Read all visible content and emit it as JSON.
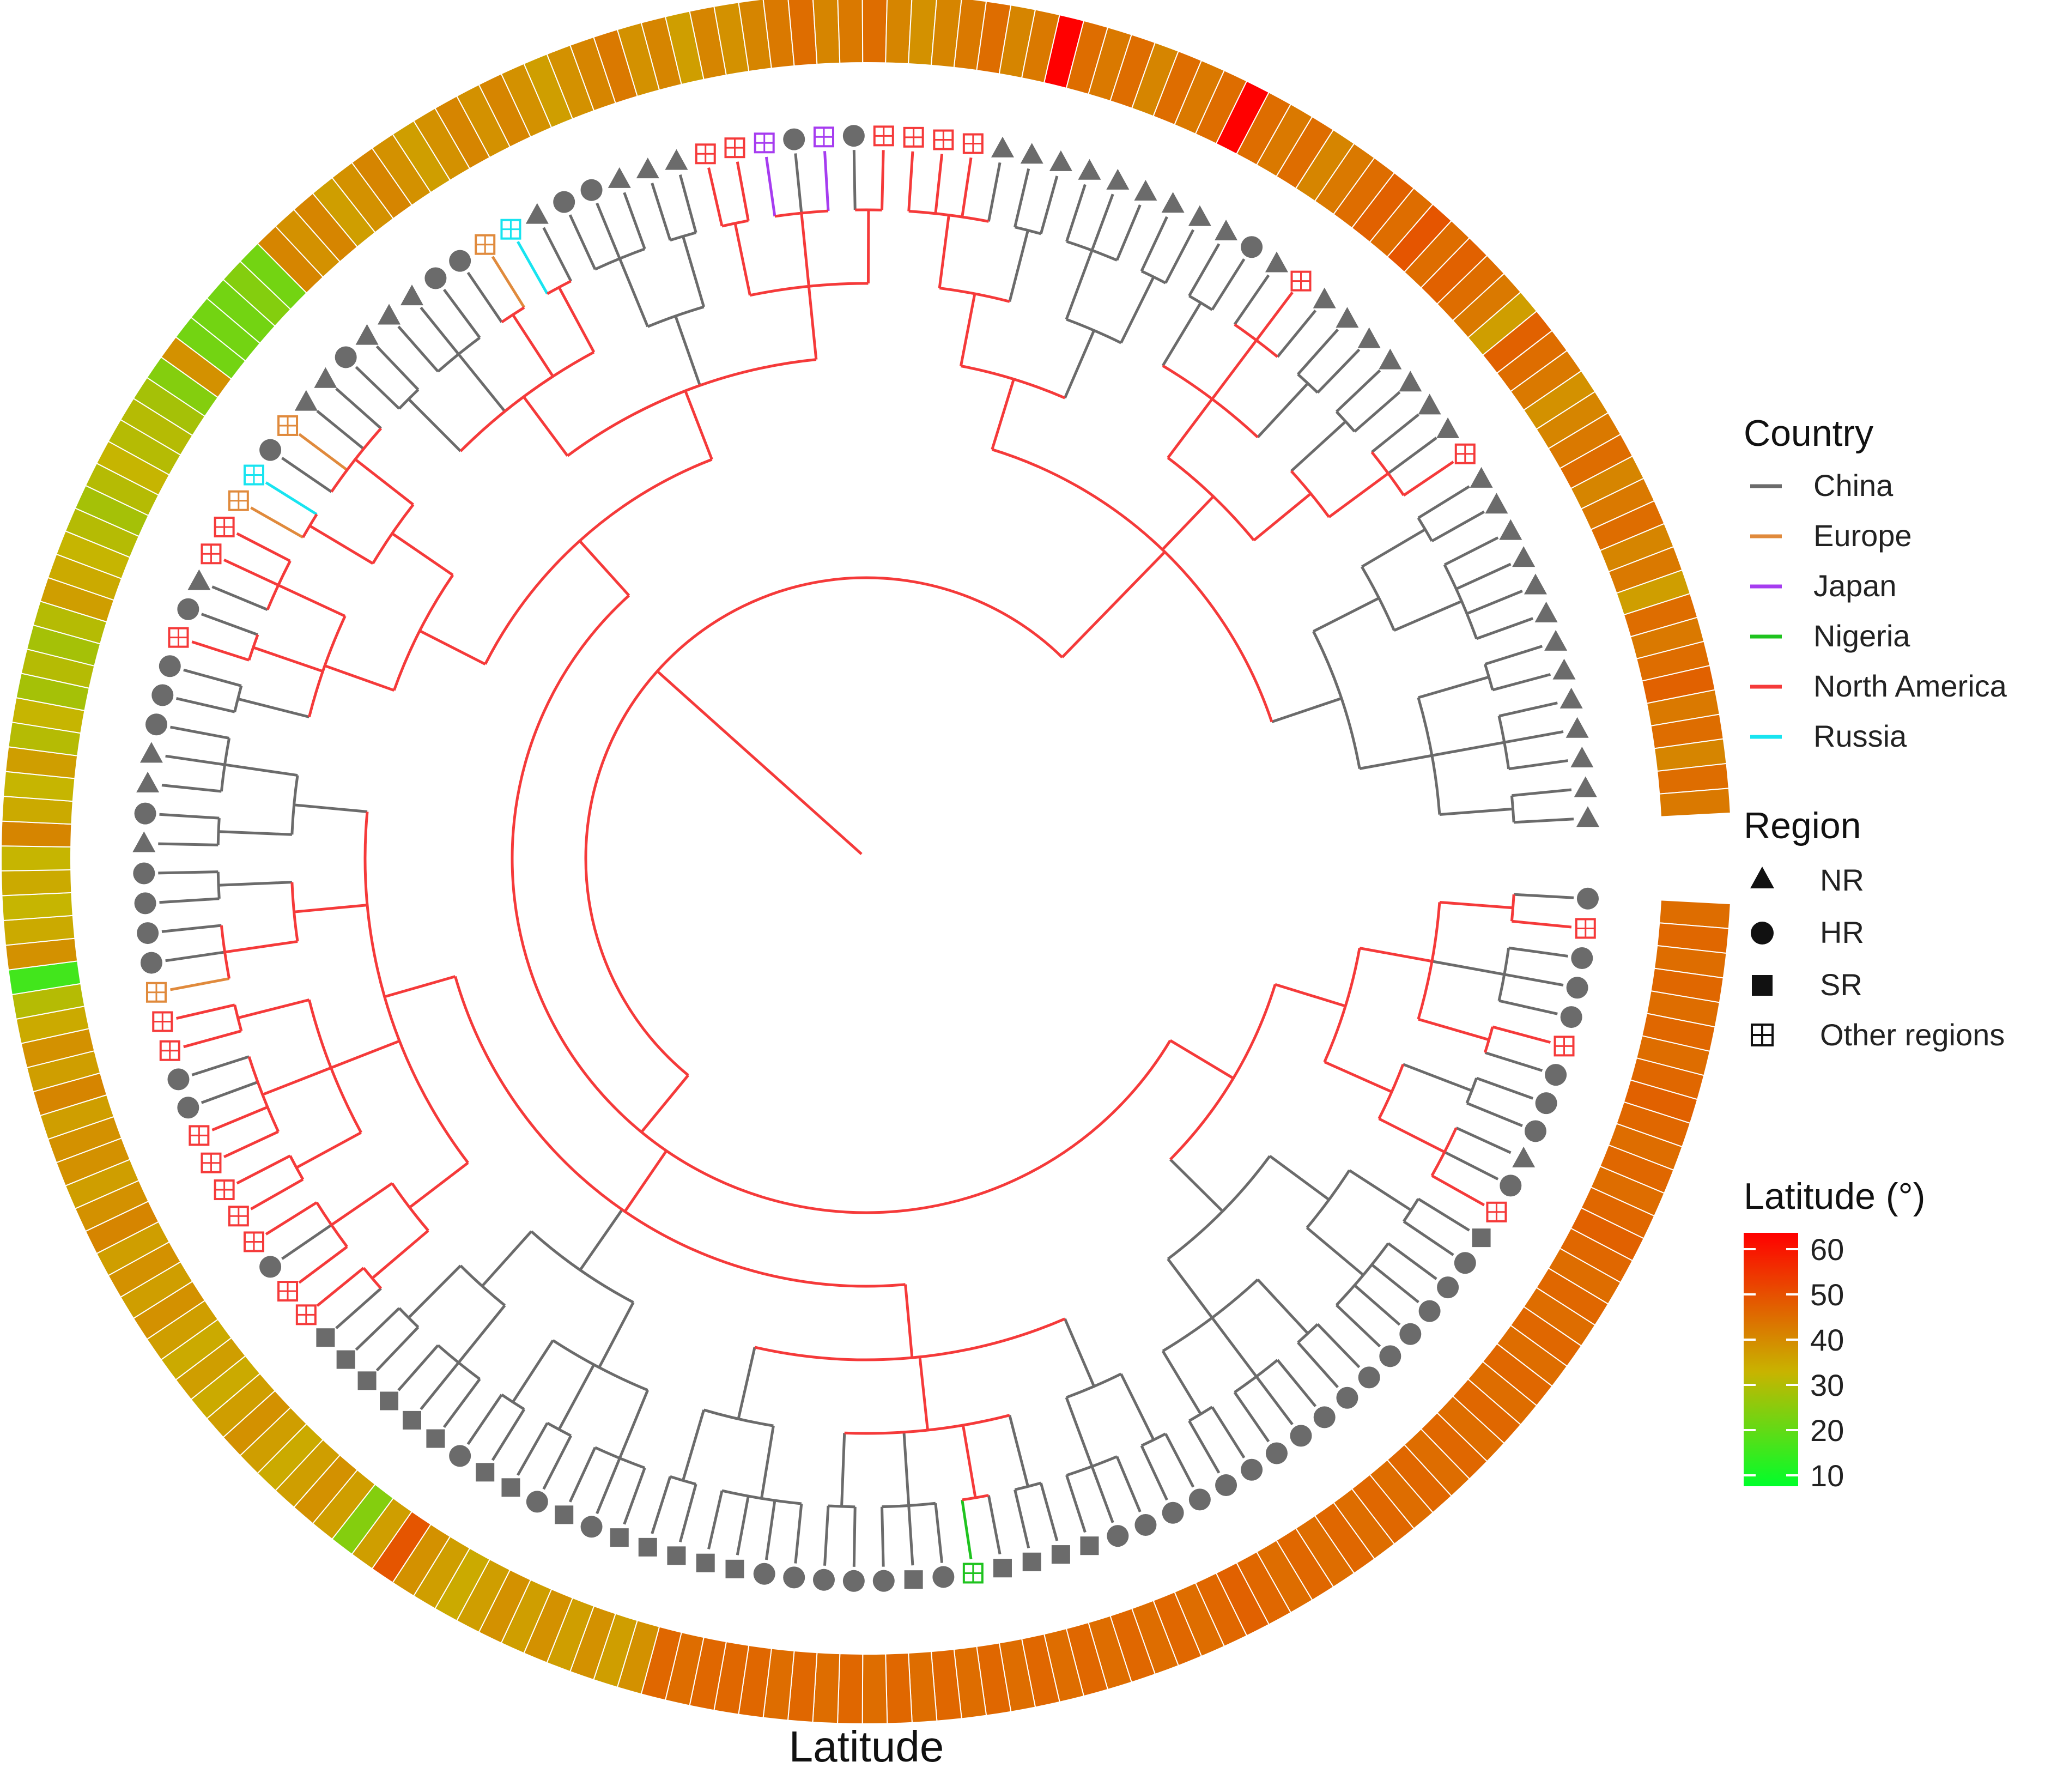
{
  "title": "Latitude",
  "legend": {
    "country": {
      "title": "Country",
      "items": [
        {
          "label": "China",
          "color": "#6b6b6b"
        },
        {
          "label": "Europe",
          "color": "#e08a3c"
        },
        {
          "label": "Japan",
          "color": "#a63cf0"
        },
        {
          "label": "Nigeria",
          "color": "#1fc31f"
        },
        {
          "label": "North America",
          "color": "#f53a3a"
        },
        {
          "label": "Russia",
          "color": "#18e4f0"
        }
      ]
    },
    "region": {
      "title": "Region",
      "items": [
        {
          "label": "NR",
          "shape": "triangle-icon"
        },
        {
          "label": "HR",
          "shape": "circle-icon"
        },
        {
          "label": "SR",
          "shape": "square-icon"
        },
        {
          "label": "Other regions",
          "shape": "boxed-plus-icon"
        }
      ]
    },
    "latitude": {
      "title": "Latitude (°)",
      "ticks": [
        "60",
        "50",
        "40",
        "30",
        "20",
        "10"
      ],
      "min": 8,
      "max": 62,
      "low_color": "#00ff2a",
      "mid_color": "#c8b400",
      "high_color": "#ff0000"
    }
  },
  "ring_latitudes": [
    44,
    45,
    44,
    45,
    44,
    45,
    44,
    45,
    46,
    45,
    44,
    45,
    44,
    45,
    46,
    45,
    44,
    45,
    44,
    45,
    44,
    45,
    44,
    45,
    44,
    45,
    44,
    45,
    44,
    45,
    44,
    45,
    44,
    45,
    44,
    45,
    46,
    45,
    44,
    45,
    44,
    45,
    44,
    45,
    44,
    45,
    44,
    45,
    44,
    45,
    44,
    45,
    44,
    45,
    44,
    45,
    44,
    45,
    45,
    45,
    44,
    45,
    38,
    36,
    38,
    36,
    38,
    36,
    38,
    36,
    34,
    36,
    38,
    48,
    36,
    24,
    36,
    38,
    36,
    34,
    36,
    38,
    36,
    34,
    36,
    34,
    36,
    38,
    36,
    38,
    36,
    40,
    38,
    36,
    38,
    38,
    36,
    40,
    36,
    38,
    34,
    30,
    16,
    38,
    34,
    32,
    34,
    32,
    40,
    34,
    32,
    36,
    30,
    32,
    28,
    30,
    28,
    30,
    36,
    34,
    32,
    30,
    28,
    30,
    32,
    30,
    30,
    28,
    24,
    38,
    22,
    22,
    22,
    24,
    22,
    40,
    38,
    40,
    36,
    38,
    40,
    38,
    36,
    38,
    40,
    38,
    40,
    38,
    36,
    38,
    40,
    42,
    38,
    40,
    36,
    40,
    38,
    40,
    42,
    44,
    40,
    42,
    44,
    40,
    38,
    40,
    42,
    44,
    40,
    42,
    62,
    44,
    42,
    44,
    40,
    44,
    42,
    44,
    62,
    44,
    42,
    44,
    40,
    42,
    44,
    46,
    44,
    48,
    44,
    46,
    44,
    42,
    36,
    46,
    44,
    42,
    38,
    40,
    42,
    44,
    40,
    42,
    44,
    40,
    42,
    36,
    44,
    42,
    44,
    46,
    42,
    44,
    40,
    44,
    42
  ],
  "tips": [
    {
      "s": "c",
      "c": "#6b6b6b"
    },
    {
      "s": "o",
      "c": "#f53a3a"
    },
    {
      "s": "c",
      "c": "#6b6b6b"
    },
    {
      "s": "c",
      "c": "#6b6b6b"
    },
    {
      "s": "c",
      "c": "#6b6b6b"
    },
    {
      "s": "o",
      "c": "#f53a3a"
    },
    {
      "s": "c",
      "c": "#6b6b6b"
    },
    {
      "s": "c",
      "c": "#6b6b6b"
    },
    {
      "s": "c",
      "c": "#6b6b6b"
    },
    {
      "s": "t",
      "c": "#6b6b6b"
    },
    {
      "s": "c",
      "c": "#6b6b6b"
    },
    {
      "s": "o",
      "c": "#f53a3a"
    },
    {
      "s": "s",
      "c": "#6b6b6b"
    },
    {
      "s": "c",
      "c": "#6b6b6b"
    },
    {
      "s": "c",
      "c": "#6b6b6b"
    },
    {
      "s": "c",
      "c": "#6b6b6b"
    },
    {
      "s": "c",
      "c": "#6b6b6b"
    },
    {
      "s": "c",
      "c": "#6b6b6b"
    },
    {
      "s": "c",
      "c": "#6b6b6b"
    },
    {
      "s": "c",
      "c": "#6b6b6b"
    },
    {
      "s": "c",
      "c": "#6b6b6b"
    },
    {
      "s": "c",
      "c": "#6b6b6b"
    },
    {
      "s": "c",
      "c": "#6b6b6b"
    },
    {
      "s": "c",
      "c": "#6b6b6b"
    },
    {
      "s": "c",
      "c": "#6b6b6b"
    },
    {
      "s": "c",
      "c": "#6b6b6b"
    },
    {
      "s": "c",
      "c": "#6b6b6b"
    },
    {
      "s": "c",
      "c": "#6b6b6b"
    },
    {
      "s": "c",
      "c": "#6b6b6b"
    },
    {
      "s": "s",
      "c": "#6b6b6b"
    },
    {
      "s": "s",
      "c": "#6b6b6b"
    },
    {
      "s": "s",
      "c": "#6b6b6b"
    },
    {
      "s": "s",
      "c": "#6b6b6b"
    },
    {
      "s": "o",
      "c": "#1fc31f"
    },
    {
      "s": "c",
      "c": "#6b6b6b"
    },
    {
      "s": "s",
      "c": "#6b6b6b"
    },
    {
      "s": "c",
      "c": "#6b6b6b"
    },
    {
      "s": "c",
      "c": "#6b6b6b"
    },
    {
      "s": "c",
      "c": "#6b6b6b"
    },
    {
      "s": "c",
      "c": "#6b6b6b"
    },
    {
      "s": "c",
      "c": "#6b6b6b"
    },
    {
      "s": "s",
      "c": "#6b6b6b"
    },
    {
      "s": "s",
      "c": "#6b6b6b"
    },
    {
      "s": "s",
      "c": "#6b6b6b"
    },
    {
      "s": "s",
      "c": "#6b6b6b"
    },
    {
      "s": "s",
      "c": "#6b6b6b"
    },
    {
      "s": "c",
      "c": "#6b6b6b"
    },
    {
      "s": "s",
      "c": "#6b6b6b"
    },
    {
      "s": "c",
      "c": "#6b6b6b"
    },
    {
      "s": "s",
      "c": "#6b6b6b"
    },
    {
      "s": "s",
      "c": "#6b6b6b"
    },
    {
      "s": "c",
      "c": "#6b6b6b"
    },
    {
      "s": "s",
      "c": "#6b6b6b"
    },
    {
      "s": "s",
      "c": "#6b6b6b"
    },
    {
      "s": "s",
      "c": "#6b6b6b"
    },
    {
      "s": "s",
      "c": "#6b6b6b"
    },
    {
      "s": "s",
      "c": "#6b6b6b"
    },
    {
      "s": "s",
      "c": "#6b6b6b"
    },
    {
      "s": "o",
      "c": "#f53a3a"
    },
    {
      "s": "o",
      "c": "#f53a3a"
    },
    {
      "s": "c",
      "c": "#6b6b6b"
    },
    {
      "s": "o",
      "c": "#f53a3a"
    },
    {
      "s": "o",
      "c": "#f53a3a"
    },
    {
      "s": "o",
      "c": "#f53a3a"
    },
    {
      "s": "o",
      "c": "#f53a3a"
    },
    {
      "s": "o",
      "c": "#f53a3a"
    },
    {
      "s": "c",
      "c": "#6b6b6b"
    },
    {
      "s": "c",
      "c": "#6b6b6b"
    },
    {
      "s": "o",
      "c": "#f53a3a"
    },
    {
      "s": "o",
      "c": "#f53a3a"
    },
    {
      "s": "o",
      "c": "#e08a3c"
    },
    {
      "s": "c",
      "c": "#6b6b6b"
    },
    {
      "s": "c",
      "c": "#6b6b6b"
    },
    {
      "s": "c",
      "c": "#6b6b6b"
    },
    {
      "s": "c",
      "c": "#6b6b6b"
    },
    {
      "s": "t",
      "c": "#6b6b6b"
    },
    {
      "s": "c",
      "c": "#6b6b6b"
    },
    {
      "s": "t",
      "c": "#6b6b6b"
    },
    {
      "s": "t",
      "c": "#6b6b6b"
    },
    {
      "s": "c",
      "c": "#6b6b6b"
    },
    {
      "s": "c",
      "c": "#6b6b6b"
    },
    {
      "s": "c",
      "c": "#6b6b6b"
    },
    {
      "s": "o",
      "c": "#f53a3a"
    },
    {
      "s": "c",
      "c": "#6b6b6b"
    },
    {
      "s": "t",
      "c": "#6b6b6b"
    },
    {
      "s": "o",
      "c": "#f53a3a"
    },
    {
      "s": "o",
      "c": "#f53a3a"
    },
    {
      "s": "o",
      "c": "#e08a3c"
    },
    {
      "s": "o",
      "c": "#18e4f0"
    },
    {
      "s": "c",
      "c": "#6b6b6b"
    },
    {
      "s": "o",
      "c": "#e08a3c"
    },
    {
      "s": "t",
      "c": "#6b6b6b"
    },
    {
      "s": "t",
      "c": "#6b6b6b"
    },
    {
      "s": "c",
      "c": "#6b6b6b"
    },
    {
      "s": "t",
      "c": "#6b6b6b"
    },
    {
      "s": "t",
      "c": "#6b6b6b"
    },
    {
      "s": "t",
      "c": "#6b6b6b"
    },
    {
      "s": "c",
      "c": "#6b6b6b"
    },
    {
      "s": "c",
      "c": "#6b6b6b"
    },
    {
      "s": "o",
      "c": "#e08a3c"
    },
    {
      "s": "o",
      "c": "#18e4f0"
    },
    {
      "s": "t",
      "c": "#6b6b6b"
    },
    {
      "s": "c",
      "c": "#6b6b6b"
    },
    {
      "s": "c",
      "c": "#6b6b6b"
    },
    {
      "s": "t",
      "c": "#6b6b6b"
    },
    {
      "s": "t",
      "c": "#6b6b6b"
    },
    {
      "s": "t",
      "c": "#6b6b6b"
    },
    {
      "s": "o",
      "c": "#f53a3a"
    },
    {
      "s": "o",
      "c": "#f53a3a"
    },
    {
      "s": "o",
      "c": "#a63cf0"
    },
    {
      "s": "c",
      "c": "#6b6b6b"
    },
    {
      "s": "o",
      "c": "#a63cf0"
    },
    {
      "s": "c",
      "c": "#6b6b6b"
    },
    {
      "s": "o",
      "c": "#f53a3a"
    },
    {
      "s": "o",
      "c": "#f53a3a"
    },
    {
      "s": "o",
      "c": "#f53a3a"
    },
    {
      "s": "o",
      "c": "#f53a3a"
    },
    {
      "s": "t",
      "c": "#6b6b6b"
    },
    {
      "s": "t",
      "c": "#6b6b6b"
    },
    {
      "s": "t",
      "c": "#6b6b6b"
    },
    {
      "s": "t",
      "c": "#6b6b6b"
    },
    {
      "s": "t",
      "c": "#6b6b6b"
    },
    {
      "s": "t",
      "c": "#6b6b6b"
    },
    {
      "s": "t",
      "c": "#6b6b6b"
    },
    {
      "s": "t",
      "c": "#6b6b6b"
    },
    {
      "s": "t",
      "c": "#6b6b6b"
    },
    {
      "s": "c",
      "c": "#6b6b6b"
    },
    {
      "s": "t",
      "c": "#6b6b6b"
    },
    {
      "s": "o",
      "c": "#f53a3a"
    },
    {
      "s": "t",
      "c": "#6b6b6b"
    },
    {
      "s": "t",
      "c": "#6b6b6b"
    },
    {
      "s": "t",
      "c": "#6b6b6b"
    },
    {
      "s": "t",
      "c": "#6b6b6b"
    },
    {
      "s": "t",
      "c": "#6b6b6b"
    },
    {
      "s": "t",
      "c": "#6b6b6b"
    },
    {
      "s": "t",
      "c": "#6b6b6b"
    },
    {
      "s": "o",
      "c": "#f53a3a"
    },
    {
      "s": "t",
      "c": "#6b6b6b"
    },
    {
      "s": "t",
      "c": "#6b6b6b"
    },
    {
      "s": "t",
      "c": "#6b6b6b"
    },
    {
      "s": "t",
      "c": "#6b6b6b"
    },
    {
      "s": "t",
      "c": "#6b6b6b"
    },
    {
      "s": "t",
      "c": "#6b6b6b"
    },
    {
      "s": "t",
      "c": "#6b6b6b"
    },
    {
      "s": "t",
      "c": "#6b6b6b"
    },
    {
      "s": "t",
      "c": "#6b6b6b"
    },
    {
      "s": "t",
      "c": "#6b6b6b"
    },
    {
      "s": "t",
      "c": "#6b6b6b"
    },
    {
      "s": "t",
      "c": "#6b6b6b"
    },
    {
      "s": "t",
      "c": "#6b6b6b"
    }
  ]
}
